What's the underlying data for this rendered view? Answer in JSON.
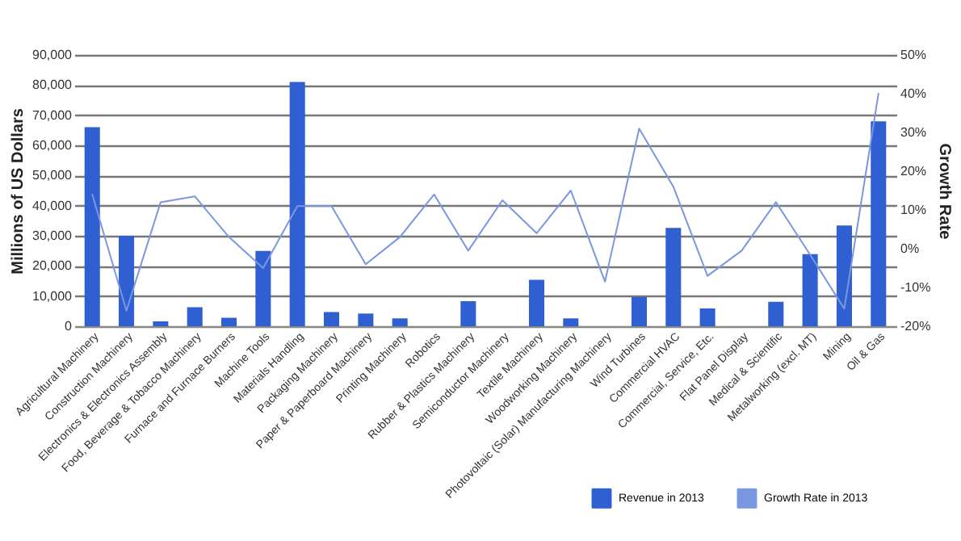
{
  "chart_data": {
    "type": "bar",
    "ylabel": "Millions of US Dollars",
    "y2label": "Growth Rate",
    "categories": [
      "Agricultural Machinery",
      "Construction Machinery",
      "Electronics & Electronics Assembly",
      "Food, Beverage & Tobacco Machinery",
      "Furnace and Furnace Burners",
      "Machine Tools",
      "Materials Handling",
      "Packaging Machinery",
      "Paper & Paperboard Machinery",
      "Printing Machinery",
      "Robotics",
      "Rubber & Plastics Machinery",
      "Semiconductor Machinery",
      "Textile Machinery",
      "Woodworking Machinery",
      "Photovoltaic (Solar) Manufacturing Machinery",
      "Wind Turbines",
      "Commercial HVAC",
      "Commercial, Service, Etc.",
      "Flat Panel Display",
      "Medical & Scientific",
      "Metalworking (excl. MT)",
      "Mining",
      "Oil & Gas"
    ],
    "series": [
      {
        "name": "Revenue in 2013",
        "color": "#2f5fd0",
        "values": [
          66000,
          30000,
          1600,
          6300,
          2800,
          25000,
          81000,
          4700,
          4200,
          2600,
          0,
          8300,
          0,
          15400,
          2600,
          0,
          9700,
          32600,
          5900,
          0,
          8100,
          23900,
          33400,
          68000
        ]
      },
      {
        "name": "Growth Rate in 2013",
        "type": "line",
        "axis": "y2",
        "color": "#7b97e2",
        "values": [
          14,
          -16,
          12,
          13.5,
          3,
          -5,
          11,
          11,
          -4,
          3,
          14,
          -0.5,
          12.5,
          4,
          15,
          -8.5,
          31,
          16,
          -7,
          -0.5,
          12,
          -1.5,
          -15.5,
          40
        ]
      }
    ],
    "ylim": [
      0,
      90000
    ],
    "yticks": [
      {
        "value": 0,
        "label": "0"
      },
      {
        "value": 10000,
        "label": "10,000"
      },
      {
        "value": 20000,
        "label": "20,000"
      },
      {
        "value": 30000,
        "label": "30,000"
      },
      {
        "value": 40000,
        "label": "40,000"
      },
      {
        "value": 50000,
        "label": "50,000"
      },
      {
        "value": 60000,
        "label": "60,000"
      },
      {
        "value": 70000,
        "label": "70,000"
      },
      {
        "value": 80000,
        "label": "80,000"
      },
      {
        "value": 90000,
        "label": "90,000"
      }
    ],
    "y2lim": [
      -20,
      50
    ],
    "y2ticks": [
      {
        "value": -20,
        "label": "-20%"
      },
      {
        "value": -10,
        "label": "-10%"
      },
      {
        "value": 0,
        "label": "0%"
      },
      {
        "value": 10,
        "label": "10%"
      },
      {
        "value": 20,
        "label": "20%"
      },
      {
        "value": 30,
        "label": "30%"
      },
      {
        "value": 40,
        "label": "40%"
      },
      {
        "value": 50,
        "label": "50%"
      }
    ],
    "grid": "y",
    "legend": "bottom right",
    "marker": "none",
    "line_style": "solid"
  }
}
